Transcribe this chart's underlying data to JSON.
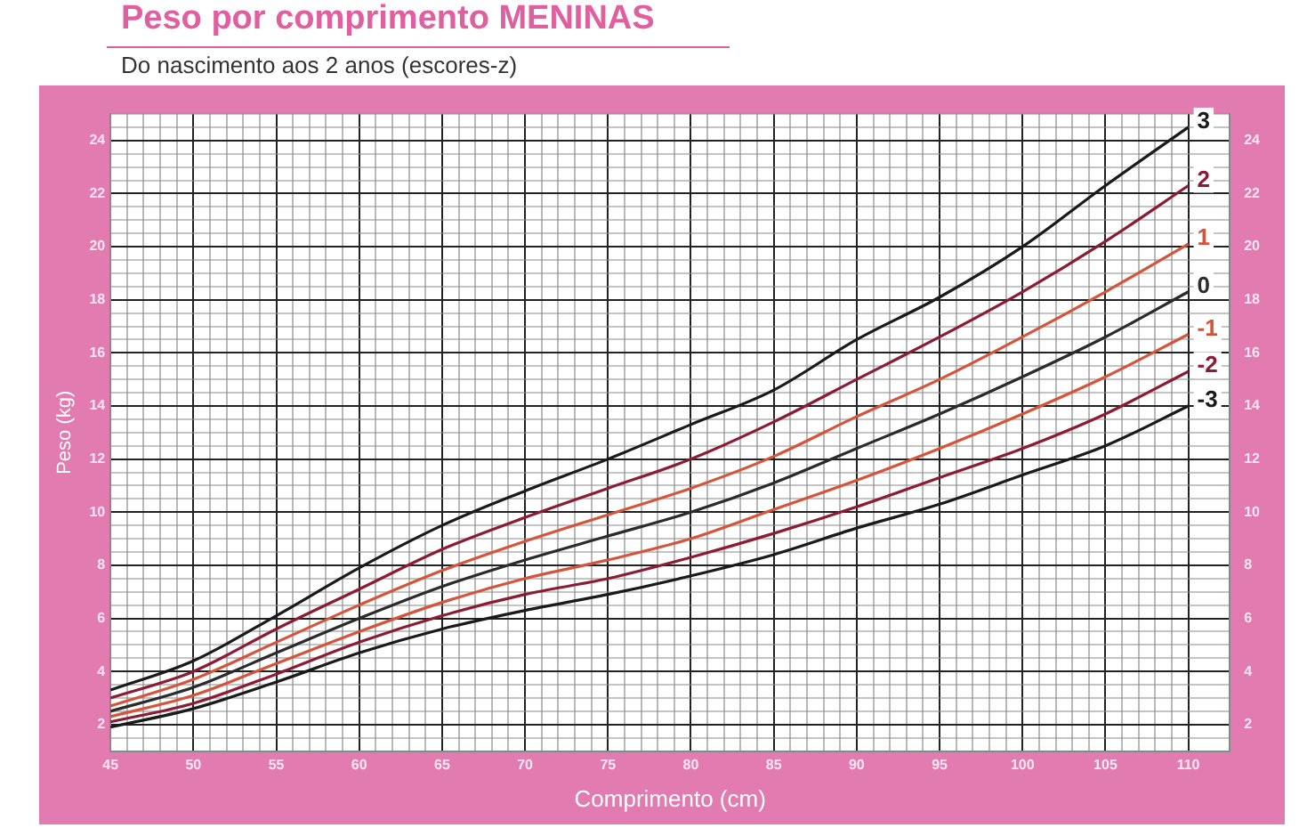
{
  "chart_data": {
    "type": "line",
    "title": "Peso por comprimento MENINAS",
    "subtitle": "Do nascimento aos 2 anos (escores-z)",
    "xlabel": "Comprimento (cm)",
    "ylabel": "Peso (kg)",
    "x": [
      45,
      50,
      55,
      60,
      65,
      70,
      75,
      80,
      85,
      90,
      95,
      100,
      105,
      110
    ],
    "series": [
      {
        "name": "3",
        "color": "#1a1a1a",
        "values": [
          3.3,
          4.4,
          6.1,
          7.9,
          9.5,
          10.8,
          12.0,
          13.3,
          14.6,
          16.5,
          18.1,
          20.0,
          22.3,
          24.5
        ]
      },
      {
        "name": "2",
        "color": "#8c1c34",
        "values": [
          3.0,
          4.0,
          5.6,
          7.1,
          8.6,
          9.8,
          10.9,
          12.0,
          13.4,
          15.0,
          16.6,
          18.3,
          20.2,
          22.3
        ]
      },
      {
        "name": "1",
        "color": "#d4553c",
        "values": [
          2.7,
          3.7,
          5.1,
          6.5,
          7.8,
          8.9,
          9.9,
          10.9,
          12.1,
          13.6,
          15.0,
          16.6,
          18.3,
          20.1
        ]
      },
      {
        "name": "0",
        "color": "#2b2b2b",
        "values": [
          2.5,
          3.4,
          4.7,
          6.0,
          7.2,
          8.2,
          9.1,
          10.0,
          11.1,
          12.4,
          13.7,
          15.1,
          16.6,
          18.3
        ]
      },
      {
        "name": "-1",
        "color": "#d4553c",
        "values": [
          2.3,
          3.1,
          4.3,
          5.5,
          6.6,
          7.5,
          8.2,
          9.0,
          10.1,
          11.2,
          12.4,
          13.7,
          15.1,
          16.7
        ]
      },
      {
        "name": "-2",
        "color": "#8c1c34",
        "values": [
          2.1,
          2.8,
          3.9,
          5.1,
          6.1,
          6.9,
          7.5,
          8.3,
          9.2,
          10.2,
          11.3,
          12.4,
          13.7,
          15.3
        ]
      },
      {
        "name": "-3",
        "color": "#1a1a1a",
        "values": [
          1.9,
          2.6,
          3.6,
          4.7,
          5.6,
          6.3,
          6.9,
          7.6,
          8.4,
          9.4,
          10.3,
          11.4,
          12.5,
          14.0
        ]
      }
    ],
    "xlim": [
      45,
      112.5
    ],
    "xticks": [
      45,
      {
        "value": 46,
        "label": null
      },
      {
        "value": 47,
        "label": null
      },
      {
        "value": 48,
        "label": null
      },
      {
        "value": 49,
        "label": null
      },
      50,
      {
        "value": 51,
        "label": null
      },
      {
        "value": 52,
        "label": null
      },
      {
        "value": 53,
        "label": null
      },
      {
        "value": 54,
        "label": null
      },
      55,
      {
        "value": 56,
        "label": null
      },
      {
        "value": 57,
        "label": null
      },
      {
        "value": 58,
        "label": null
      },
      {
        "value": 59,
        "label": null
      },
      60,
      {
        "value": 61,
        "label": null
      },
      {
        "value": 62,
        "label": null
      },
      {
        "value": 63,
        "label": null
      },
      {
        "value": 64,
        "label": null
      },
      65,
      {
        "value": 66,
        "label": null
      },
      {
        "value": 67,
        "label": null
      },
      {
        "value": 68,
        "label": null
      },
      {
        "value": 69,
        "label": null
      },
      70,
      {
        "value": 71,
        "label": null
      },
      {
        "value": 72,
        "label": null
      },
      {
        "value": 73,
        "label": null
      },
      {
        "value": 74,
        "label": null
      },
      75,
      {
        "value": 76,
        "label": null
      },
      {
        "value": 77,
        "label": null
      },
      {
        "value": 78,
        "label": null
      },
      {
        "value": 79,
        "label": null
      },
      80,
      {
        "value": 81,
        "label": null
      },
      {
        "value": 82,
        "label": null
      },
      {
        "value": 83,
        "label": null
      },
      {
        "value": 84,
        "label": null
      },
      85,
      {
        "value": 86,
        "label": null
      },
      {
        "value": 87,
        "label": null
      },
      {
        "value": 88,
        "label": null
      },
      {
        "value": 89,
        "label": null
      },
      90,
      {
        "value": 91,
        "label": null
      },
      {
        "value": 92,
        "label": null
      },
      {
        "value": 93,
        "label": null
      },
      {
        "value": 94,
        "label": null
      },
      95,
      {
        "value": 96,
        "label": null
      },
      {
        "value": 97,
        "label": null
      },
      {
        "value": 98,
        "label": null
      },
      {
        "value": 99,
        "label": null
      },
      100,
      {
        "value": 101,
        "label": null
      },
      {
        "value": 102,
        "label": null
      },
      {
        "value": 103,
        "label": null
      },
      {
        "value": 104,
        "label": null
      },
      105,
      {
        "value": 106,
        "label": null
      },
      {
        "value": 107,
        "label": null
      },
      {
        "value": 108,
        "label": null
      },
      {
        "value": 109,
        "label": null
      },
      110
    ],
    "ylim": [
      1,
      25
    ],
    "yticks": [
      {
        "value": 1,
        "label": null
      },
      {
        "value": 1.5,
        "label": null
      },
      2,
      {
        "value": 2.5,
        "label": null
      },
      {
        "value": 3,
        "label": null
      },
      {
        "value": 3.5,
        "label": null
      },
      4,
      {
        "value": 4.5,
        "label": null
      },
      {
        "value": 5,
        "label": null
      },
      {
        "value": 5.5,
        "label": null
      },
      6,
      {
        "value": 6.5,
        "label": null
      },
      {
        "value": 7,
        "label": null
      },
      {
        "value": 7.5,
        "label": null
      },
      8,
      {
        "value": 8.5,
        "label": null
      },
      {
        "value": 9,
        "label": null
      },
      {
        "value": 9.5,
        "label": null
      },
      10,
      {
        "value": 10.5,
        "label": null
      },
      {
        "value": 11,
        "label": null
      },
      {
        "value": 11.5,
        "label": null
      },
      12,
      {
        "value": 12.5,
        "label": null
      },
      {
        "value": 13,
        "label": null
      },
      {
        "value": 13.5,
        "label": null
      },
      14,
      {
        "value": 14.5,
        "label": null
      },
      {
        "value": 15,
        "label": null
      },
      {
        "value": 15.5,
        "label": null
      },
      16,
      {
        "value": 16.5,
        "label": null
      },
      {
        "value": 17,
        "label": null
      },
      {
        "value": 17.5,
        "label": null
      },
      18,
      {
        "value": 18.5,
        "label": null
      },
      {
        "value": 19,
        "label": null
      },
      {
        "value": 19.5,
        "label": null
      },
      20,
      {
        "value": 20.5,
        "label": null
      },
      {
        "value": 21,
        "label": null
      },
      {
        "value": 21.5,
        "label": null
      },
      22,
      {
        "value": 22.5,
        "label": null
      },
      {
        "value": 23,
        "label": null
      },
      {
        "value": 23.5,
        "label": null
      },
      24,
      {
        "value": 24.5,
        "label": null
      },
      {
        "value": 25,
        "label": null
      }
    ],
    "y2lim": [
      1,
      25
    ],
    "y2ticks": [
      2,
      4,
      6,
      8,
      10,
      12,
      14,
      16,
      18,
      20,
      22,
      24
    ],
    "grid": true,
    "legend": false,
    "marker": "none",
    "line_style": "solid"
  }
}
